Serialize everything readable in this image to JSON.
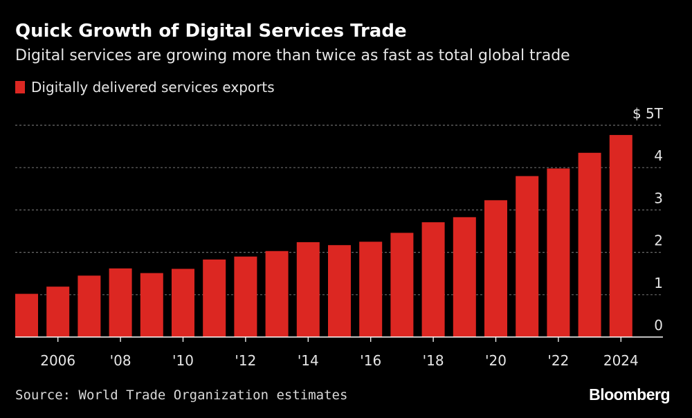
{
  "title": "Quick Growth of Digital Services Trade",
  "subtitle": "Digital services are growing more than twice as fast as total global trade",
  "legend": {
    "label": "Digitally delivered services exports",
    "color": "#dc2722"
  },
  "source": "Source: World Trade Organization estimates",
  "brand": "Bloomberg",
  "chart_data": {
    "type": "bar",
    "categories": [
      "2005",
      "2006",
      "2007",
      "2008",
      "2009",
      "2010",
      "2011",
      "2012",
      "2013",
      "2014",
      "2015",
      "2016",
      "2017",
      "2018",
      "2019",
      "2020",
      "2021",
      "2022",
      "2023",
      "2024"
    ],
    "series": [
      {
        "name": "Digitally delivered services exports",
        "values": [
          1.02,
          1.19,
          1.45,
          1.62,
          1.51,
          1.61,
          1.83,
          1.9,
          2.03,
          2.24,
          2.17,
          2.25,
          2.46,
          2.71,
          2.83,
          3.23,
          3.8,
          3.98,
          4.35,
          4.77
        ]
      }
    ],
    "x_tick_labels": [
      {
        "index": 1,
        "label": "2006"
      },
      {
        "index": 3,
        "label": "'08"
      },
      {
        "index": 5,
        "label": "'10"
      },
      {
        "index": 7,
        "label": "'12"
      },
      {
        "index": 9,
        "label": "'14"
      },
      {
        "index": 11,
        "label": "'16"
      },
      {
        "index": 13,
        "label": "'18"
      },
      {
        "index": 15,
        "label": "'20"
      },
      {
        "index": 17,
        "label": "'22"
      },
      {
        "index": 19,
        "label": "2024"
      }
    ],
    "y_ticks": [
      {
        "value": 0,
        "label": "0"
      },
      {
        "value": 1,
        "label": "1"
      },
      {
        "value": 2,
        "label": "2"
      },
      {
        "value": 3,
        "label": "3"
      },
      {
        "value": 4,
        "label": "4"
      },
      {
        "value": 5,
        "label": "$ 5T"
      }
    ],
    "ylim": [
      0,
      5
    ],
    "grid": true,
    "y_axis_position": "right",
    "legend_placement": "top-left",
    "colors": {
      "bar": "#dc2722",
      "grid": "#6b6b6b",
      "axis": "#ffffff",
      "text": "#e6e6e6"
    }
  }
}
